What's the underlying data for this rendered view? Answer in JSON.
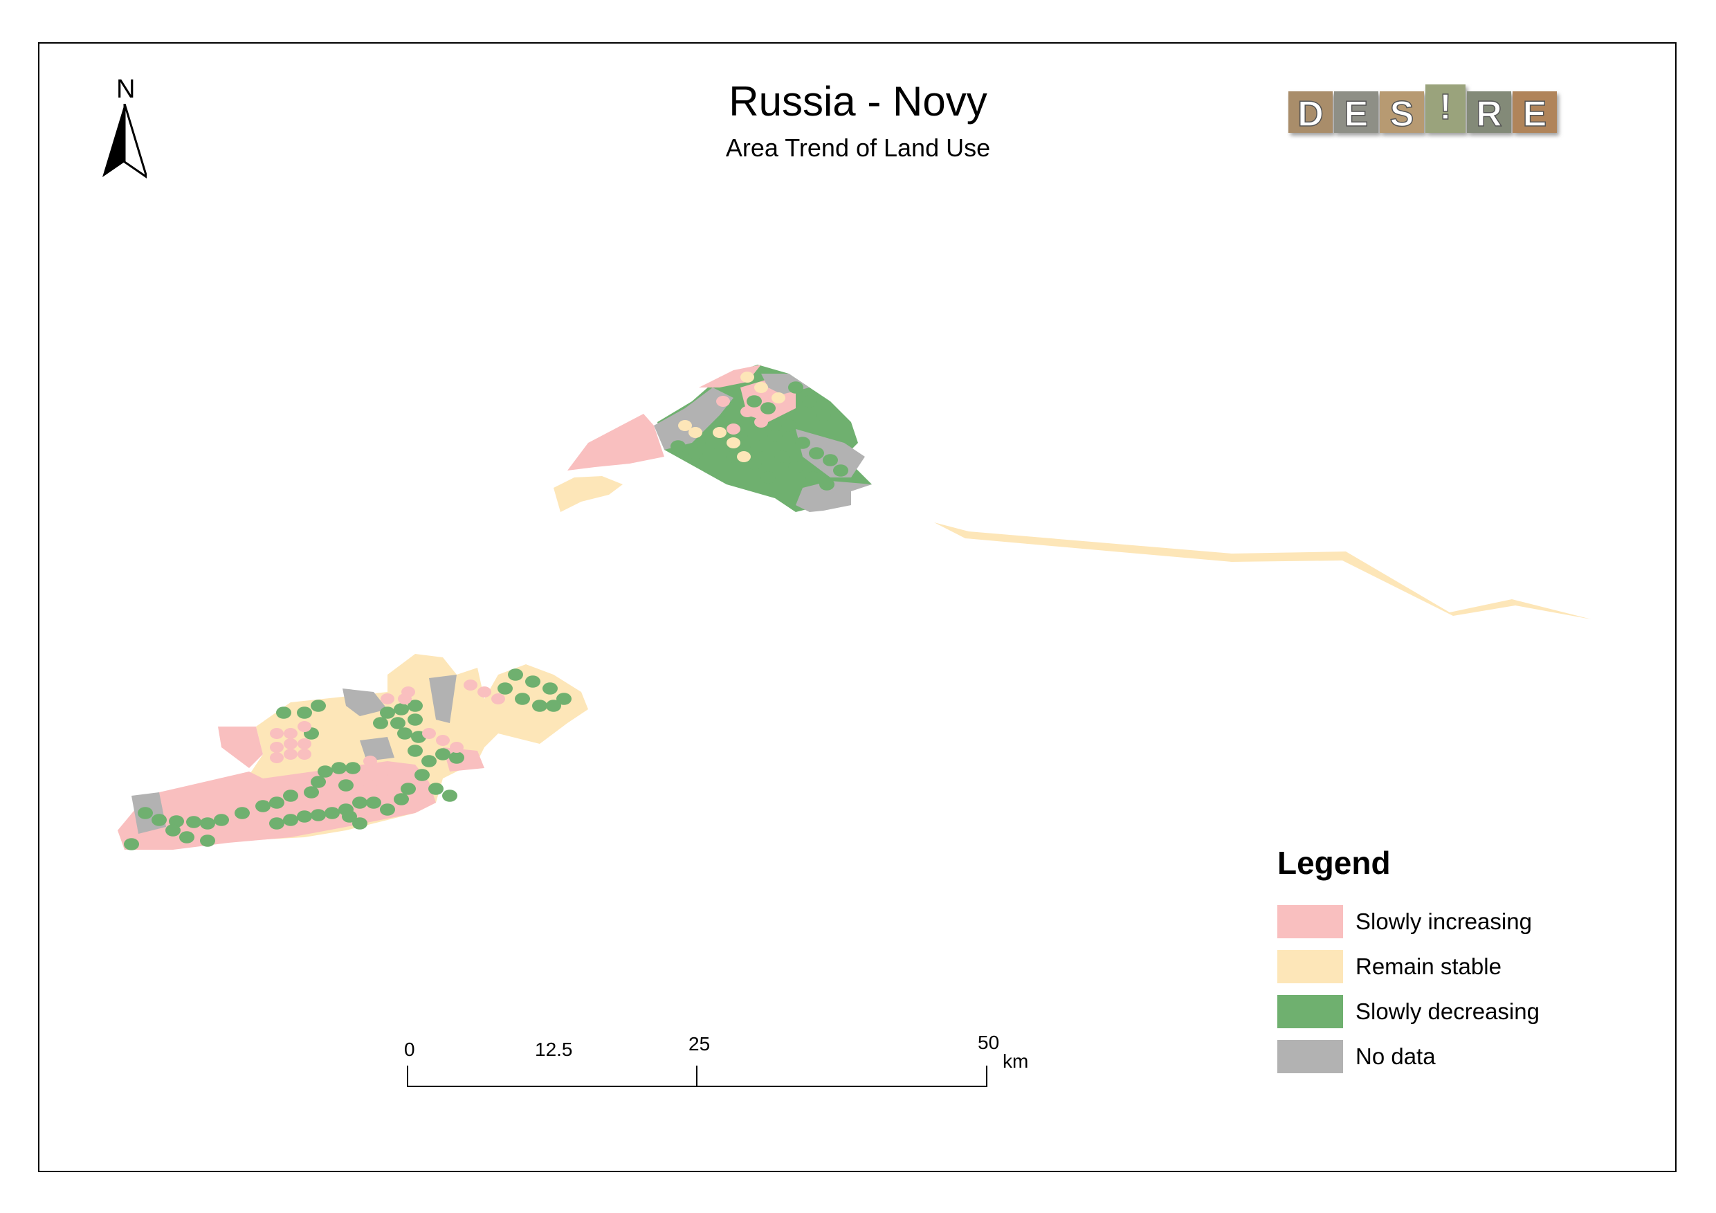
{
  "title": "Russia - Novy",
  "subtitle": "Area Trend of Land Use",
  "north": {
    "label": "N",
    "icon": "north-arrow-icon"
  },
  "logo": {
    "letters": [
      "D",
      "E",
      "S",
      "!",
      "R",
      "E"
    ],
    "icon": "desire-logo"
  },
  "legend": {
    "title": "Legend",
    "items": [
      {
        "label": "Slowly increasing",
        "color": "#f9bfbf"
      },
      {
        "label": "Remain stable",
        "color": "#fde6b8"
      },
      {
        "label": "Slowly decreasing",
        "color": "#6fb06f"
      },
      {
        "label": "No data",
        "color": "#b2b2b2"
      }
    ]
  },
  "scalebar": {
    "ticks": [
      "0",
      "12.5",
      "25",
      "50"
    ],
    "unit": "km"
  }
}
